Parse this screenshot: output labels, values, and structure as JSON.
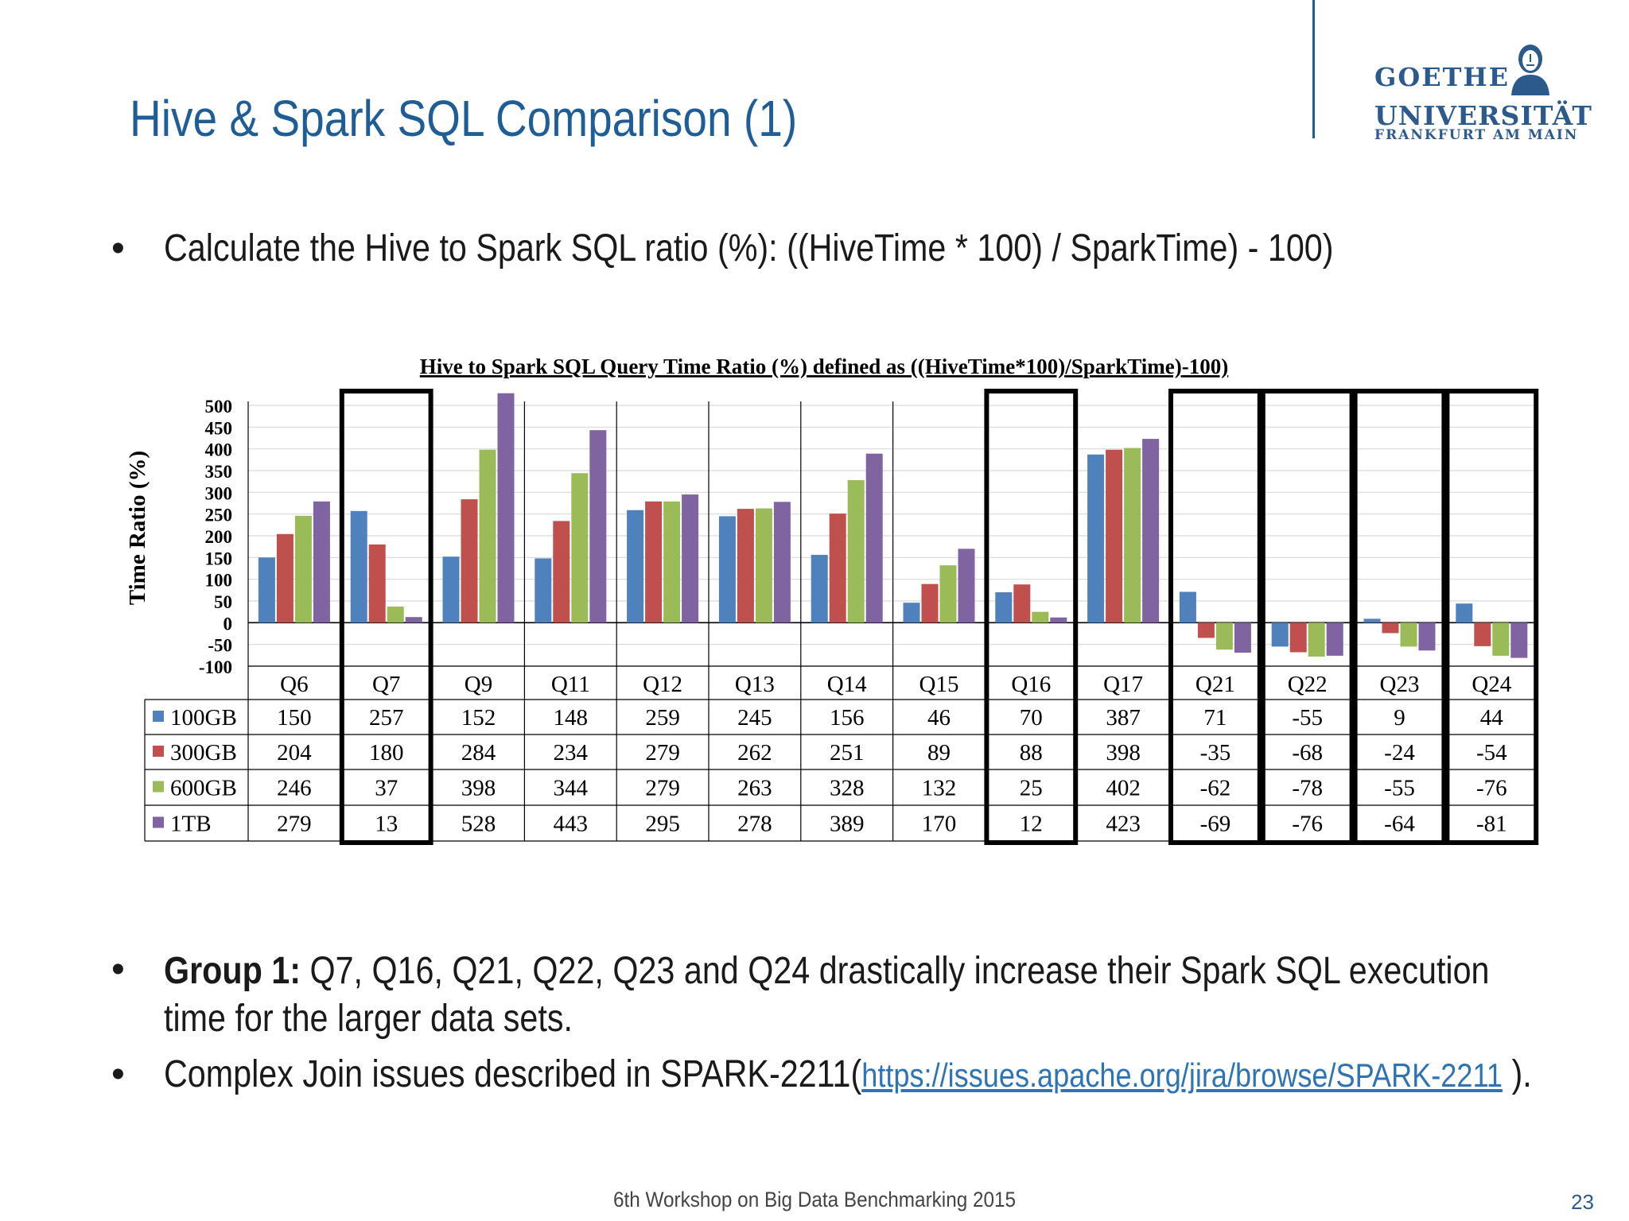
{
  "slide": {
    "title": "Hive & Spark SQL Comparison (1)",
    "bullet_1": "Calculate  the Hive to Spark SQL ratio (%):  ((HiveTime * 100) / SparkTime) - 100)",
    "bullet_2_bold": "Group 1:",
    "bullet_2_rest": " Q7, Q16, Q21, Q22, Q23 and Q24 drastically increase their Spark SQL execution",
    "bullet_2_line2": "time for the larger data sets.",
    "bullet_3_prefix": "Complex Join issues described in SPARK-2211(",
    "bullet_3_link": "https://issues.apache.org/jira/browse/SPARK-2211",
    "bullet_3_suffix": " ).",
    "footer": "6th Workshop on Big Data Benchmarking 2015",
    "page_number": "23",
    "bullet_symbol": "•"
  },
  "logo": {
    "line1": "GOETHE",
    "line2": "UNIVERSITÄT",
    "line3": "FRANKFURT AM MAIN"
  },
  "colors": {
    "title": "#1f5d96",
    "link": "#2e74b5",
    "highlight_border": "#000000"
  },
  "chart_data": {
    "type": "bar",
    "title": "Hive to Spark SQL Query Time Ratio (%) defined as ((HiveTime*100)/SparkTime)-100)",
    "xlabel": "",
    "ylabel": "Time Ratio (%)",
    "ylim": [
      -100,
      500
    ],
    "yticks": [
      500,
      450,
      400,
      350,
      300,
      250,
      200,
      150,
      100,
      50,
      0,
      -50,
      -100
    ],
    "grid": true,
    "legend_placement": "data-table",
    "categories": [
      "Q6",
      "Q7",
      "Q9",
      "Q11",
      "Q12",
      "Q13",
      "Q14",
      "Q15",
      "Q16",
      "Q17",
      "Q21",
      "Q22",
      "Q23",
      "Q24"
    ],
    "highlighted_categories": [
      "Q7",
      "Q16",
      "Q21",
      "Q22",
      "Q23",
      "Q24"
    ],
    "series": [
      {
        "name": "100GB",
        "color": "#4f81bd",
        "values": [
          150,
          257,
          152,
          148,
          259,
          245,
          156,
          46,
          70,
          387,
          71,
          -55,
          9,
          44
        ]
      },
      {
        "name": "300GB",
        "color": "#c0504d",
        "values": [
          204,
          180,
          284,
          234,
          279,
          262,
          251,
          89,
          88,
          398,
          -35,
          -68,
          -24,
          -54
        ]
      },
      {
        "name": "600GB",
        "color": "#9bbb59",
        "values": [
          246,
          37,
          398,
          344,
          279,
          263,
          328,
          132,
          25,
          402,
          -62,
          -78,
          -55,
          -76
        ]
      },
      {
        "name": "1TB",
        "color": "#8064a2",
        "values": [
          279,
          13,
          528,
          443,
          295,
          278,
          389,
          170,
          12,
          423,
          -69,
          -76,
          -64,
          -81
        ]
      }
    ]
  }
}
